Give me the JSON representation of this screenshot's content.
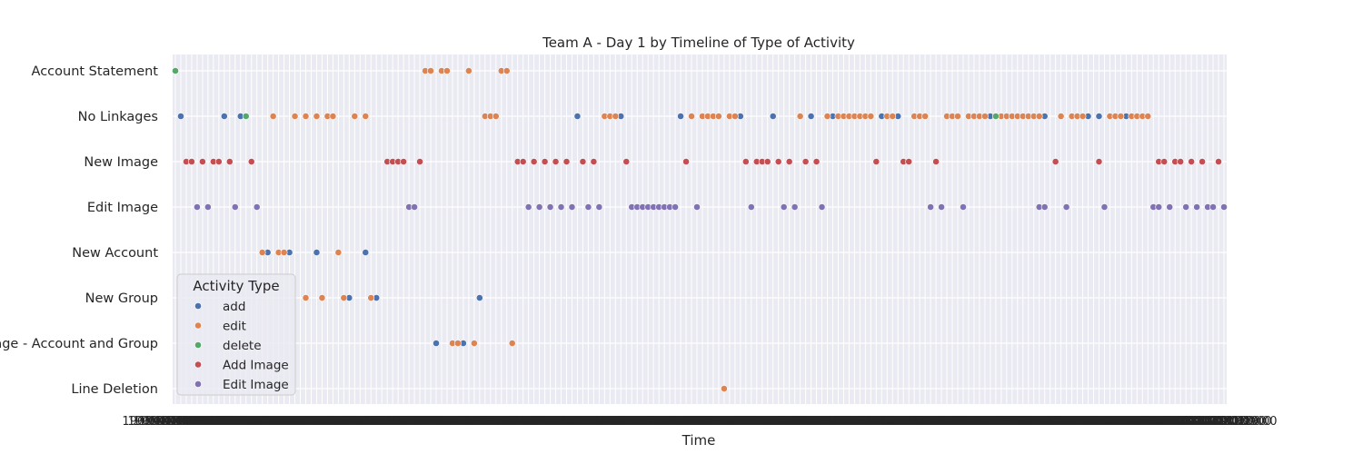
{
  "chart_data": {
    "type": "scatter",
    "title": "Team A - Day 1 by Timeline of Type of Activity",
    "xlabel": "Time",
    "ylabel": "",
    "x_tick_first": "1900",
    "x_tick_last": "2000",
    "x_tick_marks": [
      "1900-01-01 09:00",
      "1900-01-01 13:00",
      "1900-01-01 18:00",
      "1900-01-01 19:00",
      "1900-01-01 20:00"
    ],
    "xlim": [
      0,
      193
    ],
    "grid": true,
    "categories": [
      "Account Statement",
      "No Linkages",
      "New Image",
      "Edit Image",
      "New Account",
      "New Group",
      "Linkage - Account and Group",
      "Line Deletion"
    ],
    "legend": {
      "title": "Activity Type",
      "placement": "lower-left",
      "entries": [
        "add",
        "edit",
        "delete",
        "Add Image",
        "Edit Image"
      ]
    },
    "colors": {
      "add": "#4c72b0",
      "edit": "#dd8452",
      "delete": "#55a868",
      "Add Image": "#c44e52",
      "Edit Image": "#8172b3",
      "plot_background": "#eaeaf2",
      "grid": "#ffffff"
    },
    "series": [
      {
        "name": "add",
        "points": [
          [
            1,
            "No Linkages"
          ],
          [
            9,
            "No Linkages"
          ],
          [
            12,
            "No Linkages"
          ],
          [
            74,
            "No Linkages"
          ],
          [
            82,
            "No Linkages"
          ],
          [
            93,
            "No Linkages"
          ],
          [
            104,
            "No Linkages"
          ],
          [
            110,
            "No Linkages"
          ],
          [
            117,
            "No Linkages"
          ],
          [
            121,
            "No Linkages"
          ],
          [
            130,
            "No Linkages"
          ],
          [
            133,
            "No Linkages"
          ],
          [
            150,
            "No Linkages"
          ],
          [
            160,
            "No Linkages"
          ],
          [
            168,
            "No Linkages"
          ],
          [
            170,
            "No Linkages"
          ],
          [
            175,
            "No Linkages"
          ],
          [
            17,
            "New Account"
          ],
          [
            21,
            "New Account"
          ],
          [
            26,
            "New Account"
          ],
          [
            35,
            "New Account"
          ],
          [
            32,
            "New Group"
          ],
          [
            37,
            "New Group"
          ],
          [
            56,
            "New Group"
          ],
          [
            48,
            "Linkage - Account and Group"
          ],
          [
            53,
            "Linkage - Account and Group"
          ]
        ]
      },
      {
        "name": "edit",
        "points": [
          [
            46,
            "Account Statement"
          ],
          [
            47,
            "Account Statement"
          ],
          [
            49,
            "Account Statement"
          ],
          [
            50,
            "Account Statement"
          ],
          [
            54,
            "Account Statement"
          ],
          [
            60,
            "Account Statement"
          ],
          [
            61,
            "Account Statement"
          ],
          [
            18,
            "No Linkages"
          ],
          [
            22,
            "No Linkages"
          ],
          [
            24,
            "No Linkages"
          ],
          [
            26,
            "No Linkages"
          ],
          [
            28,
            "No Linkages"
          ],
          [
            29,
            "No Linkages"
          ],
          [
            33,
            "No Linkages"
          ],
          [
            35,
            "No Linkages"
          ],
          [
            57,
            "No Linkages"
          ],
          [
            58,
            "No Linkages"
          ],
          [
            59,
            "No Linkages"
          ],
          [
            79,
            "No Linkages"
          ],
          [
            80,
            "No Linkages"
          ],
          [
            81,
            "No Linkages"
          ],
          [
            95,
            "No Linkages"
          ],
          [
            97,
            "No Linkages"
          ],
          [
            98,
            "No Linkages"
          ],
          [
            99,
            "No Linkages"
          ],
          [
            100,
            "No Linkages"
          ],
          [
            102,
            "No Linkages"
          ],
          [
            103,
            "No Linkages"
          ],
          [
            115,
            "No Linkages"
          ],
          [
            120,
            "No Linkages"
          ],
          [
            122,
            "No Linkages"
          ],
          [
            123,
            "No Linkages"
          ],
          [
            124,
            "No Linkages"
          ],
          [
            125,
            "No Linkages"
          ],
          [
            126,
            "No Linkages"
          ],
          [
            127,
            "No Linkages"
          ],
          [
            128,
            "No Linkages"
          ],
          [
            131,
            "No Linkages"
          ],
          [
            132,
            "No Linkages"
          ],
          [
            136,
            "No Linkages"
          ],
          [
            137,
            "No Linkages"
          ],
          [
            138,
            "No Linkages"
          ],
          [
            142,
            "No Linkages"
          ],
          [
            143,
            "No Linkages"
          ],
          [
            144,
            "No Linkages"
          ],
          [
            146,
            "No Linkages"
          ],
          [
            147,
            "No Linkages"
          ],
          [
            148,
            "No Linkages"
          ],
          [
            149,
            "No Linkages"
          ],
          [
            151,
            "No Linkages"
          ],
          [
            152,
            "No Linkages"
          ],
          [
            153,
            "No Linkages"
          ],
          [
            154,
            "No Linkages"
          ],
          [
            155,
            "No Linkages"
          ],
          [
            156,
            "No Linkages"
          ],
          [
            157,
            "No Linkages"
          ],
          [
            158,
            "No Linkages"
          ],
          [
            159,
            "No Linkages"
          ],
          [
            163,
            "No Linkages"
          ],
          [
            165,
            "No Linkages"
          ],
          [
            166,
            "No Linkages"
          ],
          [
            167,
            "No Linkages"
          ],
          [
            172,
            "No Linkages"
          ],
          [
            173,
            "No Linkages"
          ],
          [
            174,
            "No Linkages"
          ],
          [
            176,
            "No Linkages"
          ],
          [
            177,
            "No Linkages"
          ],
          [
            178,
            "No Linkages"
          ],
          [
            179,
            "No Linkages"
          ],
          [
            16,
            "New Account"
          ],
          [
            19,
            "New Account"
          ],
          [
            20,
            "New Account"
          ],
          [
            30,
            "New Account"
          ],
          [
            24,
            "New Group"
          ],
          [
            27,
            "New Group"
          ],
          [
            31,
            "New Group"
          ],
          [
            36,
            "New Group"
          ],
          [
            51,
            "Linkage - Account and Group"
          ],
          [
            52,
            "Linkage - Account and Group"
          ],
          [
            55,
            "Linkage - Account and Group"
          ],
          [
            62,
            "Linkage - Account and Group"
          ],
          [
            101,
            "Line Deletion"
          ]
        ]
      },
      {
        "name": "delete",
        "points": [
          [
            0,
            "Account Statement"
          ],
          [
            13,
            "No Linkages"
          ],
          [
            151,
            "No Linkages"
          ]
        ]
      },
      {
        "name": "Add Image",
        "points": [
          [
            2,
            "New Image"
          ],
          [
            3,
            "New Image"
          ],
          [
            5,
            "New Image"
          ],
          [
            7,
            "New Image"
          ],
          [
            8,
            "New Image"
          ],
          [
            10,
            "New Image"
          ],
          [
            14,
            "New Image"
          ],
          [
            39,
            "New Image"
          ],
          [
            40,
            "New Image"
          ],
          [
            41,
            "New Image"
          ],
          [
            42,
            "New Image"
          ],
          [
            45,
            "New Image"
          ],
          [
            63,
            "New Image"
          ],
          [
            64,
            "New Image"
          ],
          [
            66,
            "New Image"
          ],
          [
            68,
            "New Image"
          ],
          [
            70,
            "New Image"
          ],
          [
            72,
            "New Image"
          ],
          [
            75,
            "New Image"
          ],
          [
            77,
            "New Image"
          ],
          [
            83,
            "New Image"
          ],
          [
            94,
            "New Image"
          ],
          [
            105,
            "New Image"
          ],
          [
            107,
            "New Image"
          ],
          [
            108,
            "New Image"
          ],
          [
            109,
            "New Image"
          ],
          [
            111,
            "New Image"
          ],
          [
            113,
            "New Image"
          ],
          [
            116,
            "New Image"
          ],
          [
            118,
            "New Image"
          ],
          [
            129,
            "New Image"
          ],
          [
            134,
            "New Image"
          ],
          [
            135,
            "New Image"
          ],
          [
            140,
            "New Image"
          ],
          [
            162,
            "New Image"
          ],
          [
            170,
            "New Image"
          ],
          [
            181,
            "New Image"
          ],
          [
            182,
            "New Image"
          ],
          [
            184,
            "New Image"
          ],
          [
            185,
            "New Image"
          ],
          [
            187,
            "New Image"
          ],
          [
            189,
            "New Image"
          ],
          [
            192,
            "New Image"
          ]
        ]
      },
      {
        "name": "Edit Image",
        "points": [
          [
            4,
            "Edit Image"
          ],
          [
            6,
            "Edit Image"
          ],
          [
            11,
            "Edit Image"
          ],
          [
            15,
            "Edit Image"
          ],
          [
            43,
            "Edit Image"
          ],
          [
            44,
            "Edit Image"
          ],
          [
            65,
            "Edit Image"
          ],
          [
            67,
            "Edit Image"
          ],
          [
            69,
            "Edit Image"
          ],
          [
            71,
            "Edit Image"
          ],
          [
            73,
            "Edit Image"
          ],
          [
            76,
            "Edit Image"
          ],
          [
            78,
            "Edit Image"
          ],
          [
            84,
            "Edit Image"
          ],
          [
            85,
            "Edit Image"
          ],
          [
            86,
            "Edit Image"
          ],
          [
            87,
            "Edit Image"
          ],
          [
            88,
            "Edit Image"
          ],
          [
            89,
            "Edit Image"
          ],
          [
            90,
            "Edit Image"
          ],
          [
            91,
            "Edit Image"
          ],
          [
            92,
            "Edit Image"
          ],
          [
            96,
            "Edit Image"
          ],
          [
            106,
            "Edit Image"
          ],
          [
            112,
            "Edit Image"
          ],
          [
            114,
            "Edit Image"
          ],
          [
            119,
            "Edit Image"
          ],
          [
            139,
            "Edit Image"
          ],
          [
            141,
            "Edit Image"
          ],
          [
            145,
            "Edit Image"
          ],
          [
            159,
            "Edit Image"
          ],
          [
            160,
            "Edit Image"
          ],
          [
            164,
            "Edit Image"
          ],
          [
            171,
            "Edit Image"
          ],
          [
            180,
            "Edit Image"
          ],
          [
            181,
            "Edit Image"
          ],
          [
            183,
            "Edit Image"
          ],
          [
            186,
            "Edit Image"
          ],
          [
            188,
            "Edit Image"
          ],
          [
            190,
            "Edit Image"
          ],
          [
            191,
            "Edit Image"
          ],
          [
            193,
            "Edit Image"
          ]
        ]
      }
    ]
  }
}
